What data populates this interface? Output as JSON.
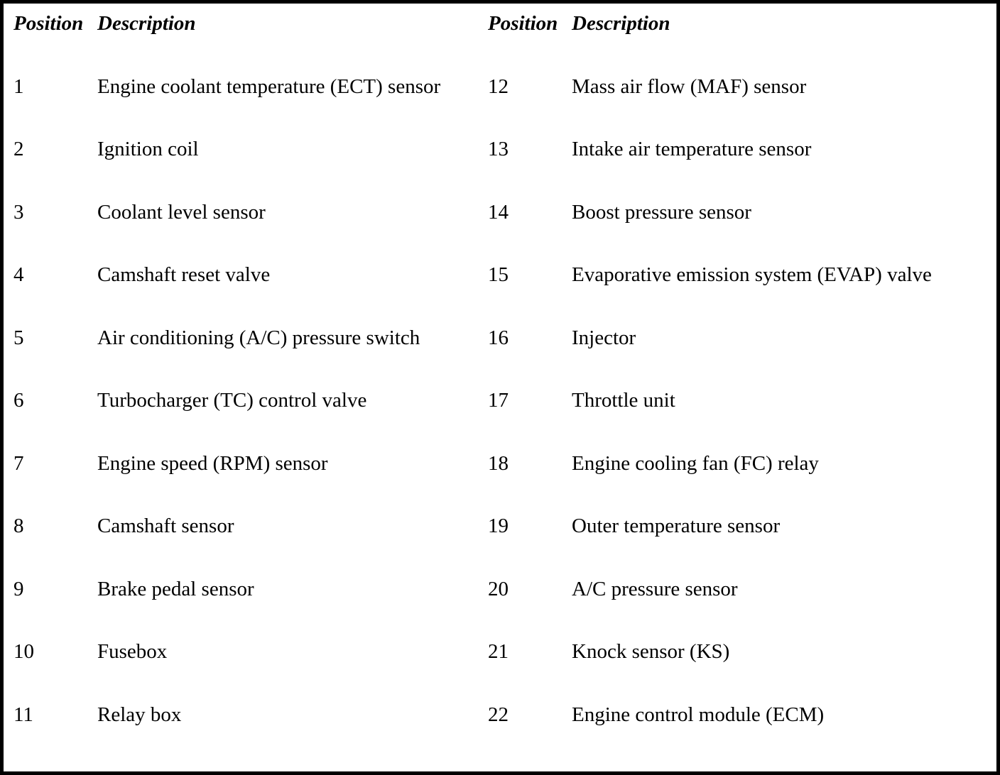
{
  "table": {
    "header": {
      "position": "Position",
      "description": "Description"
    },
    "columns": [
      {
        "rows": [
          {
            "position": "1",
            "description": "Engine coolant temperature (ECT) sensor"
          },
          {
            "position": "2",
            "description": "Ignition coil"
          },
          {
            "position": "3",
            "description": "Coolant level sensor"
          },
          {
            "position": "4",
            "description": "Camshaft reset valve"
          },
          {
            "position": "5",
            "description": "Air conditioning (A/C) pressure switch"
          },
          {
            "position": "6",
            "description": "Turbocharger (TC) control valve"
          },
          {
            "position": "7",
            "description": "Engine speed (RPM) sensor"
          },
          {
            "position": "8",
            "description": "Camshaft sensor"
          },
          {
            "position": "9",
            "description": "Brake pedal sensor"
          },
          {
            "position": "10",
            "description": "Fusebox"
          },
          {
            "position": "11",
            "description": "Relay box"
          }
        ]
      },
      {
        "rows": [
          {
            "position": "12",
            "description": "Mass air flow (MAF) sensor"
          },
          {
            "position": "13",
            "description": "Intake air temperature sensor"
          },
          {
            "position": "14",
            "description": "Boost pressure sensor"
          },
          {
            "position": "15",
            "description": "Evaporative emission system (EVAP) valve"
          },
          {
            "position": "16",
            "description": "Injector"
          },
          {
            "position": "17",
            "description": "Throttle unit"
          },
          {
            "position": "18",
            "description": "Engine cooling fan (FC) relay"
          },
          {
            "position": "19",
            "description": "Outer temperature sensor"
          },
          {
            "position": "20",
            "description": "A/C pressure sensor"
          },
          {
            "position": "21",
            "description": "Knock sensor (KS)"
          },
          {
            "position": "22",
            "description": "Engine control module (ECM)"
          }
        ]
      }
    ]
  }
}
